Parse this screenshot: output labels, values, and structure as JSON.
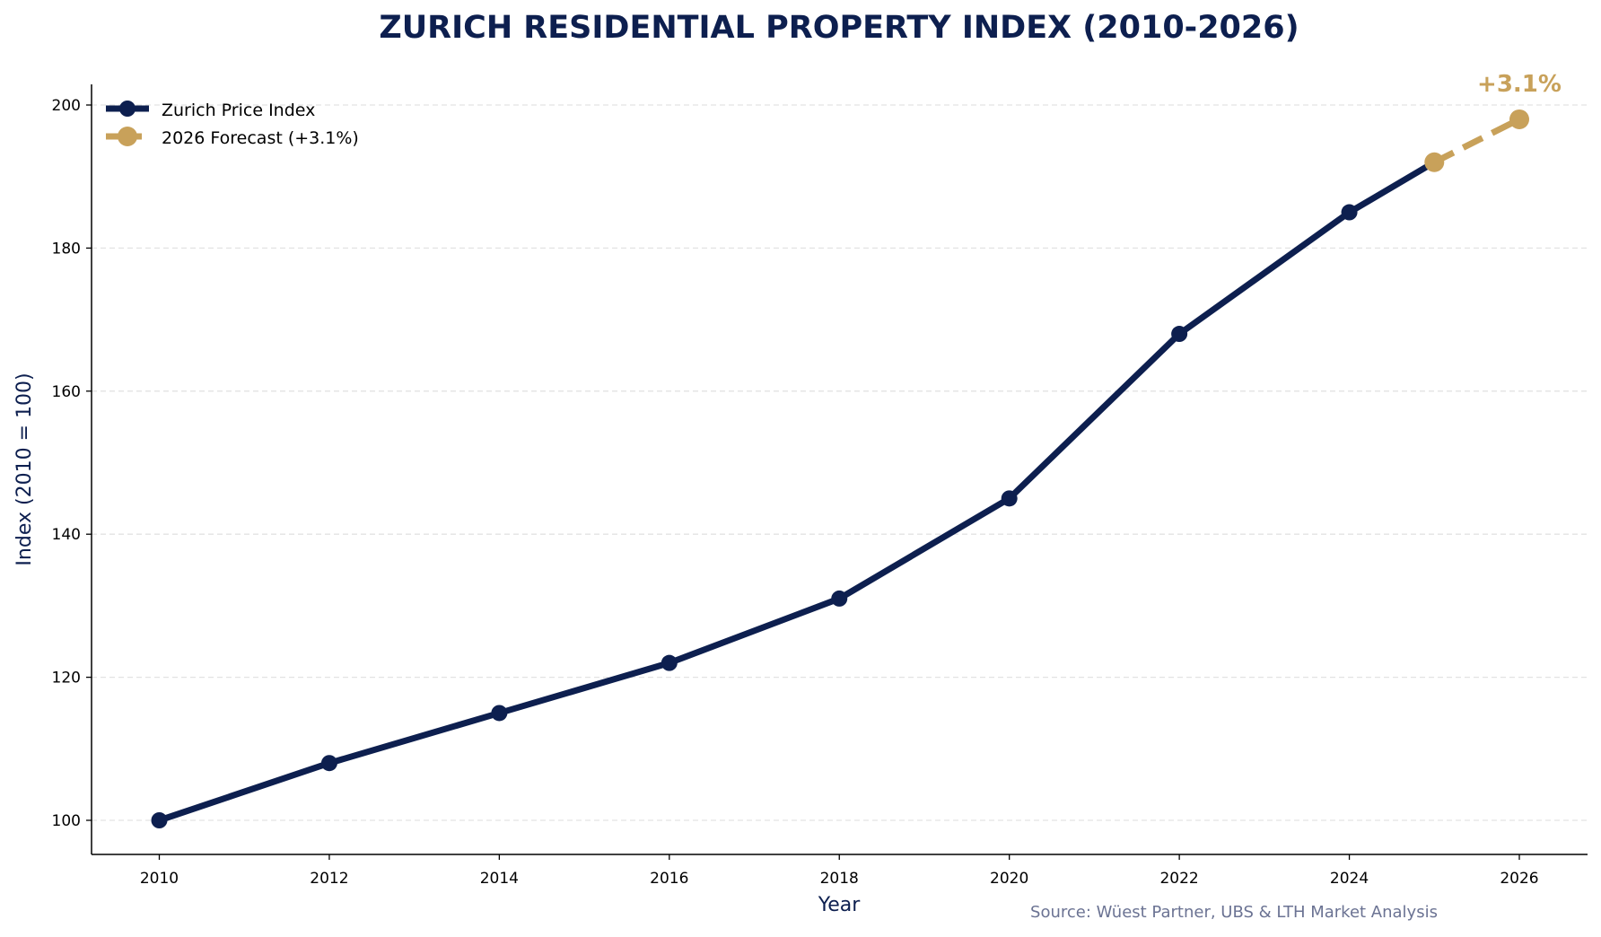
{
  "chart_data": {
    "type": "line",
    "title": "ZURICH RESIDENTIAL PROPERTY INDEX (2010-2026)",
    "xlabel": "Year",
    "ylabel": "Index (2010 = 100)",
    "xlim": [
      2009.2,
      2026.8
    ],
    "ylim": [
      95,
      203
    ],
    "xticks": [
      2010,
      2012,
      2014,
      2016,
      2018,
      2020,
      2022,
      2024,
      2026
    ],
    "yticks": [
      100,
      120,
      140,
      160,
      180,
      200
    ],
    "grid": "y, dashed",
    "legend_position": "top-left",
    "series": [
      {
        "name": "Zurich Price Index",
        "color": "#0d1f4f",
        "style": "solid",
        "x": [
          2010,
          2012,
          2014,
          2016,
          2018,
          2020,
          2022,
          2024,
          2025
        ],
        "y": [
          100,
          108,
          115,
          122,
          131,
          145,
          168,
          185,
          192
        ]
      },
      {
        "name": "2026 Forecast (+3.1%)",
        "color": "#c8a15a",
        "style": "dashed",
        "x": [
          2025,
          2026
        ],
        "y": [
          192,
          198
        ]
      }
    ],
    "annotations": [
      {
        "text": "+3.1%",
        "x": 2026,
        "y": 198,
        "color": "#c8a15a"
      }
    ],
    "source": "Source: Wüest Partner, UBS & LTH Market Analysis"
  }
}
